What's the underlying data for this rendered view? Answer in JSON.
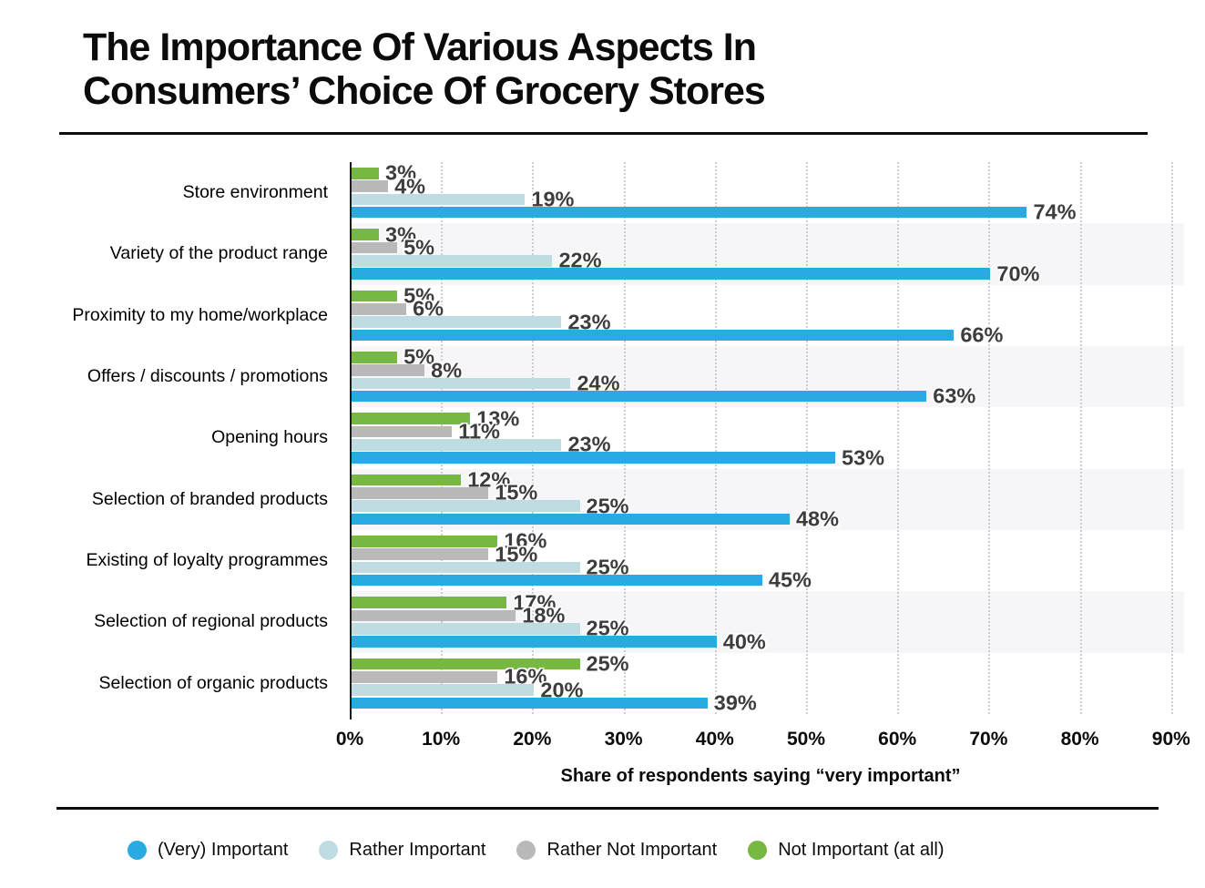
{
  "header": {
    "title_line1": "The Importance Of Various Aspects In",
    "title_line2": "Consumers’ Choice Of Grocery Stores"
  },
  "chart_data": {
    "type": "bar",
    "orientation": "horizontal",
    "title": "The Importance Of Various Aspects In Consumers’ Choice Of Grocery Stores",
    "xlabel": "Share of respondents saying “very important”",
    "xlim": [
      0,
      90
    ],
    "x_ticks": [
      "0%",
      "10%",
      "20%",
      "30%",
      "40%",
      "50%",
      "60%",
      "70%",
      "80%",
      "90%"
    ],
    "grid": "vertical-dotted",
    "legend_position": "bottom",
    "value_suffix": "%",
    "bar_order_top_to_bottom": [
      "Not Important (at all)",
      "Rather Not Important",
      "Rather Important",
      "(Very) Important"
    ],
    "categories": [
      "Store environment",
      "Variety of the product range",
      "Proximity to my home/workplace",
      "Offers / discounts / promotions",
      "Opening hours",
      "Selection of branded products",
      "Existing of loyalty programmes",
      "Selection of regional products",
      "Selection of organic products"
    ],
    "series": [
      {
        "name": "(Very) Important",
        "color": "#29ABE2",
        "values": [
          74,
          70,
          66,
          63,
          53,
          48,
          45,
          40,
          39
        ]
      },
      {
        "name": "Rather Important",
        "color": "#BEDCE1",
        "values": [
          19,
          22,
          23,
          24,
          23,
          25,
          25,
          25,
          20
        ]
      },
      {
        "name": "Rather Not Important",
        "color": "#B9B9B9",
        "values": [
          4,
          5,
          6,
          8,
          11,
          15,
          15,
          18,
          16
        ]
      },
      {
        "name": "Not Important (at all)",
        "color": "#77B843",
        "values": [
          3,
          3,
          5,
          5,
          13,
          12,
          16,
          17,
          25
        ]
      }
    ]
  },
  "legend": {
    "items": [
      {
        "label": "(Very) Important",
        "color": "#29ABE2"
      },
      {
        "label": "Rather Important",
        "color": "#BEDCE1"
      },
      {
        "label": "Rather Not Important",
        "color": "#B9B9B9"
      },
      {
        "label": "Not Important (at all)",
        "color": "#77B843"
      }
    ]
  },
  "style": {
    "band_color": "#F6F6F8",
    "gridline_color": "#CDCDCD",
    "value_label_color": "#3D3D3D"
  }
}
